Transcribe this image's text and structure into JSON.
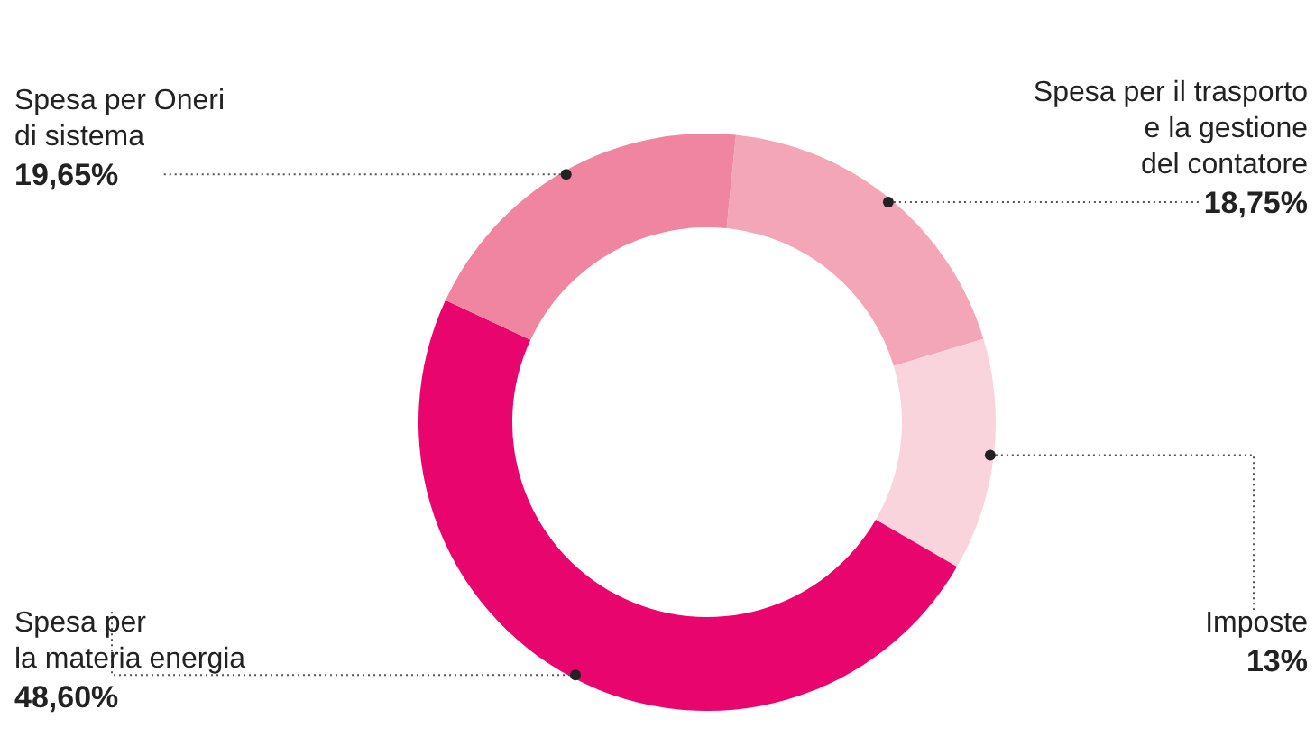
{
  "chart_data": {
    "type": "donut",
    "categories": [
      "Spesa per il trasporto\ne la gestione\ndel contatore",
      "Imposte",
      "Spesa per\nla materia energia",
      "Spesa per Oneri\ndi sistema"
    ],
    "values": [
      18.75,
      13,
      48.6,
      19.65
    ],
    "colors": [
      "#f4a6b9",
      "#f9d4dd",
      "#e8066e",
      "#ef85a1"
    ],
    "value_labels": [
      "18,75%",
      "13%",
      "48,60%",
      "19,65%"
    ]
  }
}
